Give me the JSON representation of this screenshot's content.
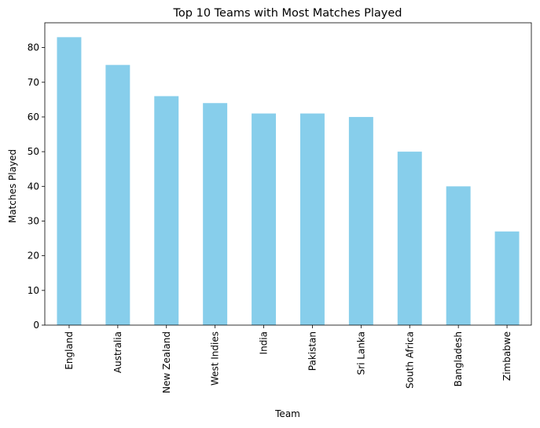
{
  "chart_data": {
    "type": "bar",
    "title": "Top 10 Teams with Most Matches Played",
    "xlabel": "Team",
    "ylabel": "Matches Played",
    "categories": [
      "England",
      "Australia",
      "New Zealand",
      "West Indies",
      "India",
      "Pakistan",
      "Sri Lanka",
      "South Africa",
      "Bangladesh",
      "Zimbabwe"
    ],
    "values": [
      83,
      75,
      66,
      64,
      61,
      61,
      60,
      50,
      40,
      27
    ],
    "ylim": [
      0,
      87.15
    ],
    "yticks": [
      0,
      10,
      20,
      30,
      40,
      50,
      60,
      70,
      80
    ],
    "bar_color": "#87ceeb",
    "grid": false,
    "legend": "none"
  }
}
